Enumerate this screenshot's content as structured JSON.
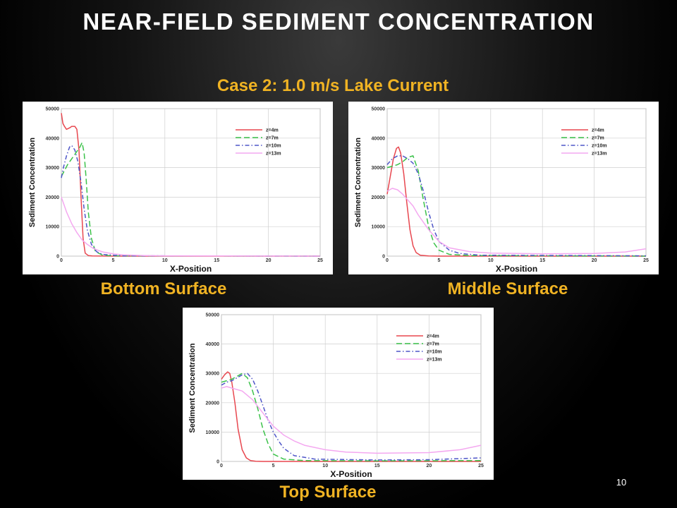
{
  "slide": {
    "title": "NEAR-FIELD SEDIMENT CONCENTRATION",
    "subtitle": "Case 2:  1.0 m/s Lake Current",
    "page_number": "10"
  },
  "colors": {
    "background": "#000000",
    "title": "#ffffff",
    "accent": "#f0b323"
  },
  "chart_data": [
    {
      "type": "line",
      "caption": "Bottom Surface",
      "xlabel": "X-Position",
      "ylabel": "Sediment Concentration",
      "xlim": [
        0,
        25
      ],
      "ylim": [
        0,
        50000
      ],
      "xticks": [
        0,
        5,
        10,
        15,
        20,
        25
      ],
      "yticks": [
        0,
        10000,
        20000,
        30000,
        40000,
        50000
      ],
      "grid": true,
      "legend_position": "top-right",
      "series": [
        {
          "name": "z=4m",
          "color": "#e8474f",
          "dash": "solid",
          "x": [
            0,
            0.15,
            0.3,
            0.5,
            0.8,
            1.0,
            1.3,
            1.5,
            1.7,
            1.9,
            2.1,
            2.3,
            2.6,
            3,
            5,
            25
          ],
          "y": [
            48500,
            45000,
            44000,
            43000,
            43500,
            44000,
            44000,
            43000,
            36000,
            20000,
            6000,
            1000,
            200,
            50,
            0,
            0
          ]
        },
        {
          "name": "z=7m",
          "color": "#3cc24a",
          "dash": "8 4",
          "x": [
            0,
            0.3,
            0.6,
            1.0,
            1.4,
            1.8,
            2.0,
            2.2,
            2.4,
            2.6,
            2.9,
            3.3,
            4,
            5,
            25
          ],
          "y": [
            27000,
            29000,
            31000,
            33000,
            35000,
            37000,
            38500,
            35000,
            26000,
            15000,
            6000,
            1500,
            300,
            100,
            0
          ]
        },
        {
          "name": "z=10m",
          "color": "#4f56c8",
          "dash": "6 3 1.5 3",
          "x": [
            0,
            0.2,
            0.5,
            0.8,
            1.0,
            1.3,
            1.6,
            1.9,
            2.2,
            2.5,
            2.9,
            3.4,
            4,
            5,
            6,
            25
          ],
          "y": [
            26500,
            30000,
            34000,
            37000,
            37500,
            36000,
            32000,
            25000,
            16000,
            9000,
            4000,
            1500,
            600,
            300,
            100,
            0
          ]
        },
        {
          "name": "z=13m",
          "color": "#f4a8f0",
          "dash": "solid",
          "x": [
            0,
            0.5,
            1.0,
            1.5,
            2.0,
            2.5,
            3.0,
            3.5,
            4,
            5,
            6,
            8,
            10,
            25
          ],
          "y": [
            20000,
            15000,
            11000,
            8000,
            5500,
            4000,
            2800,
            2000,
            1400,
            800,
            400,
            200,
            100,
            0
          ]
        }
      ]
    },
    {
      "type": "line",
      "caption": "Middle Surface",
      "xlabel": "X-Position",
      "ylabel": "Sediment Concentration",
      "xlim": [
        0,
        25
      ],
      "ylim": [
        0,
        50000
      ],
      "xticks": [
        0,
        5,
        10,
        15,
        20,
        25
      ],
      "yticks": [
        0,
        10000,
        20000,
        30000,
        40000,
        50000
      ],
      "grid": true,
      "legend_position": "top-right",
      "series": [
        {
          "name": "z=4m",
          "color": "#e8474f",
          "dash": "solid",
          "x": [
            0,
            0.3,
            0.6,
            0.9,
            1.1,
            1.3,
            1.6,
            1.9,
            2.2,
            2.5,
            2.8,
            3.2,
            4,
            5,
            25
          ],
          "y": [
            21000,
            27000,
            33000,
            36500,
            37000,
            35000,
            28000,
            18000,
            9000,
            3500,
            1200,
            300,
            50,
            0,
            0
          ]
        },
        {
          "name": "z=7m",
          "color": "#3cc24a",
          "dash": "8 4",
          "x": [
            0,
            0.5,
            1.0,
            1.5,
            2.0,
            2.5,
            3.0,
            3.5,
            4.0,
            4.5,
            5,
            6,
            8,
            25
          ],
          "y": [
            30000,
            30500,
            31000,
            32000,
            33500,
            34000,
            29000,
            19000,
            10000,
            4500,
            2000,
            600,
            200,
            0
          ]
        },
        {
          "name": "z=10m",
          "color": "#4f56c8",
          "dash": "6 3 1.5 3",
          "x": [
            0,
            0.5,
            1.0,
            1.5,
            2.0,
            2.5,
            3.0,
            3.5,
            4.0,
            4.5,
            5,
            6,
            7,
            9,
            25
          ],
          "y": [
            31000,
            33000,
            34000,
            34000,
            33000,
            31500,
            28000,
            22000,
            15000,
            9000,
            5000,
            2000,
            900,
            300,
            100
          ]
        },
        {
          "name": "z=13m",
          "color": "#f4a8f0",
          "dash": "solid",
          "x": [
            0,
            0.5,
            1.0,
            1.5,
            2.0,
            2.5,
            3.0,
            4.0,
            5.0,
            6.0,
            8,
            10,
            15,
            20,
            23,
            25
          ],
          "y": [
            22000,
            23000,
            22500,
            21000,
            19000,
            17000,
            14000,
            9000,
            5000,
            2800,
            1500,
            1000,
            800,
            900,
            1400,
            2500
          ]
        }
      ]
    },
    {
      "type": "line",
      "caption": "Top Surface",
      "xlabel": "X-Position",
      "ylabel": "Sediment Concentration",
      "xlim": [
        0,
        25
      ],
      "ylim": [
        0,
        50000
      ],
      "xticks": [
        0,
        5,
        10,
        15,
        20,
        25
      ],
      "yticks": [
        0,
        10000,
        20000,
        30000,
        40000,
        50000
      ],
      "grid": true,
      "legend_position": "top-right",
      "series": [
        {
          "name": "z=4m",
          "color": "#e8474f",
          "dash": "solid",
          "x": [
            0,
            0.3,
            0.6,
            0.8,
            1.0,
            1.3,
            1.6,
            2.0,
            2.4,
            2.8,
            3.3,
            4,
            5,
            25
          ],
          "y": [
            28000,
            29500,
            30500,
            30000,
            27000,
            20000,
            11000,
            4000,
            1200,
            300,
            50,
            0,
            0,
            0
          ]
        },
        {
          "name": "z=7m",
          "color": "#3cc24a",
          "dash": "8 4",
          "x": [
            0,
            0.5,
            1.0,
            1.5,
            2.0,
            2.5,
            3.0,
            3.5,
            4.0,
            4.5,
            5.0,
            6,
            8,
            15,
            25
          ],
          "y": [
            27000,
            27500,
            28000,
            29000,
            30000,
            28500,
            24000,
            18000,
            11000,
            6000,
            2500,
            800,
            300,
            200,
            300
          ]
        },
        {
          "name": "z=10m",
          "color": "#4f56c8",
          "dash": "6 3 1.5 3",
          "x": [
            0,
            0.5,
            1.0,
            1.5,
            2.0,
            2.5,
            3.0,
            3.5,
            4.0,
            4.5,
            5.0,
            5.5,
            6,
            7,
            9,
            15,
            20,
            25
          ],
          "y": [
            26000,
            27000,
            27500,
            28500,
            29500,
            30000,
            28000,
            24000,
            19000,
            14000,
            10000,
            7000,
            4500,
            2000,
            800,
            500,
            600,
            1200
          ]
        },
        {
          "name": "z=13m",
          "color": "#f4a8f0",
          "dash": "solid",
          "x": [
            0,
            0.5,
            1.0,
            1.5,
            2.0,
            3.0,
            4.0,
            5.0,
            6.0,
            7,
            8,
            10,
            12,
            15,
            20,
            23,
            25
          ],
          "y": [
            25000,
            25500,
            25000,
            24500,
            24000,
            21000,
            16500,
            12000,
            9000,
            7000,
            5500,
            4000,
            3200,
            2800,
            3000,
            4000,
            5500
          ]
        }
      ]
    }
  ]
}
